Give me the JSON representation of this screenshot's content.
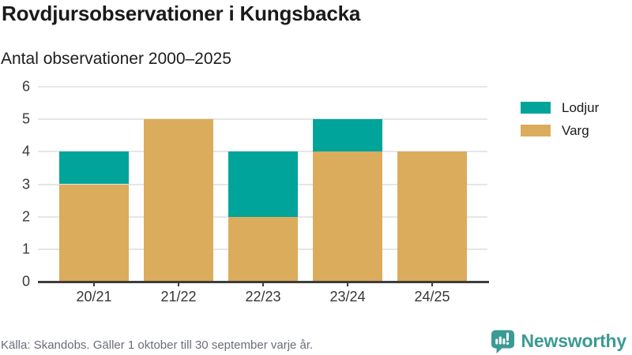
{
  "header": {
    "title": "Rovdjursobservationer i Kungsbacka",
    "subtitle": "Antal observationer 2000–2025"
  },
  "chart_data": {
    "type": "bar",
    "stacked": true,
    "title": "Rovdjursobservationer i Kungsbacka",
    "subtitle": "Antal observationer 2000–2025",
    "categories": [
      "20/21",
      "21/22",
      "22/23",
      "23/24",
      "24/25"
    ],
    "series": [
      {
        "name": "Varg",
        "color": "#DBAC5C",
        "values": [
          3,
          5,
          2,
          4,
          4
        ]
      },
      {
        "name": "Lodjur",
        "color": "#00A49B",
        "values": [
          1,
          0,
          2,
          1,
          0
        ]
      }
    ],
    "totals": [
      4,
      5,
      4,
      5,
      4
    ],
    "legend": [
      {
        "label": "Lodjur",
        "color": "#00A49B"
      },
      {
        "label": "Varg",
        "color": "#DBAC5C"
      }
    ],
    "legend_position": "right",
    "ylim": [
      0,
      6
    ],
    "yticks": [
      0,
      1,
      2,
      3,
      4,
      5,
      6
    ],
    "grid": true,
    "xlabel": "",
    "ylabel": ""
  },
  "footer": {
    "source": "Källa: Skandobs. Gäller 1 oktober till 30 september varje år.",
    "brand": "Newsworthy"
  },
  "colors": {
    "lodjur": "#00A49B",
    "varg": "#DBAC5C",
    "brand_teal": "#3b9a94",
    "axis": "#3d3d3d",
    "grid": "#e6e6e6",
    "text_dark": "#1a1a1a",
    "source_text": "#6a6e78"
  }
}
